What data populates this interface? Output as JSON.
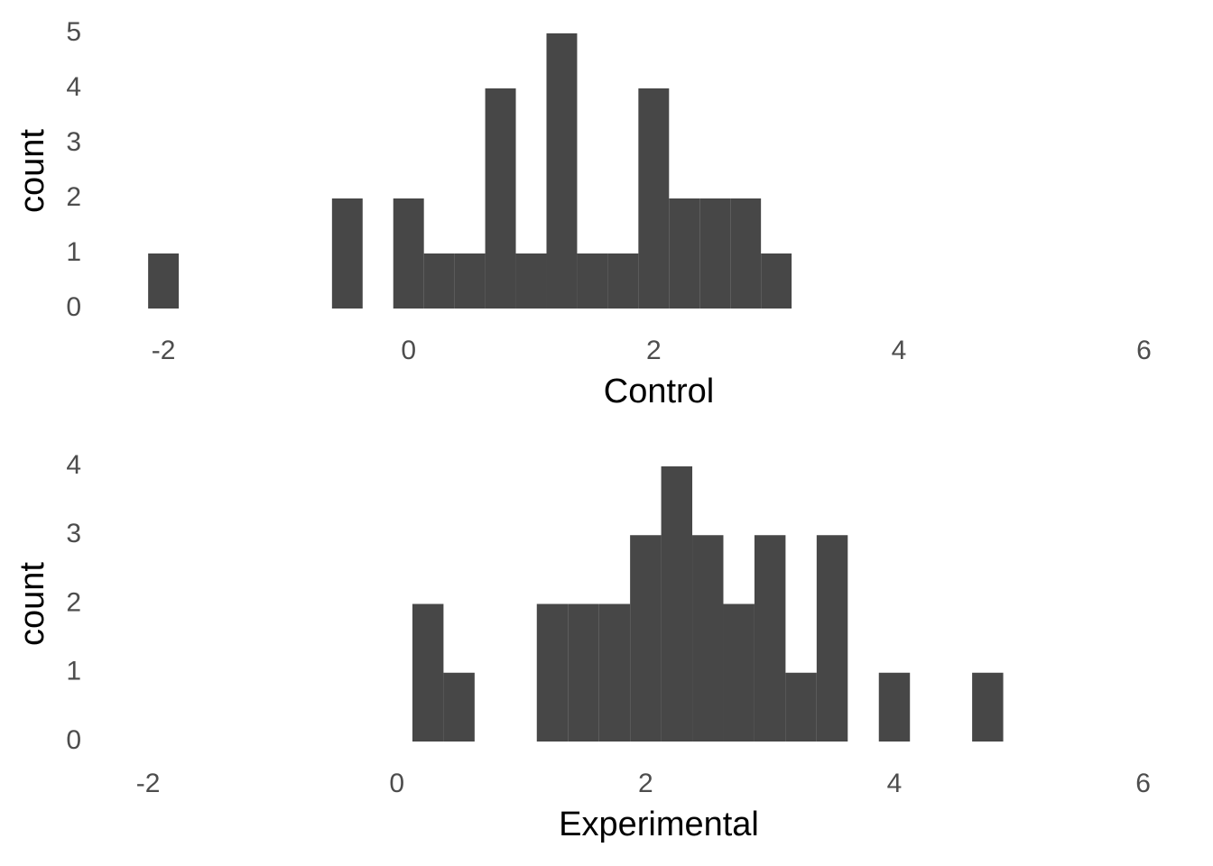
{
  "chart_data": [
    {
      "type": "histogram",
      "xlabel": "Control",
      "ylabel": "count",
      "color": "#474747",
      "grid": false,
      "bins": [
        -2.125,
        -1.875,
        -1.625,
        -1.375,
        -1.125,
        -0.875,
        -0.625,
        -0.375,
        -0.125,
        0.125,
        0.375,
        0.625,
        0.875,
        1.125,
        1.375,
        1.625,
        1.875,
        2.125,
        2.375,
        2.625,
        2.875,
        3.125
      ],
      "values": [
        1,
        0,
        0,
        0,
        0,
        0,
        2,
        0,
        2,
        1,
        1,
        4,
        1,
        5,
        1,
        1,
        4,
        2,
        2,
        2,
        1
      ],
      "xlim": [
        -2.45,
        6.46
      ],
      "xticks": [
        -2,
        0,
        2,
        4,
        6
      ],
      "ylim": [
        0,
        5
      ],
      "yticks": [
        0,
        1,
        2,
        3,
        4,
        5
      ]
    },
    {
      "type": "histogram",
      "xlabel": "Experimental",
      "ylabel": "count",
      "color": "#474747",
      "grid": false,
      "bins": [
        0.125,
        0.375,
        0.625,
        0.875,
        1.125,
        1.375,
        1.625,
        1.875,
        2.125,
        2.375,
        2.625,
        2.875,
        3.125,
        3.375,
        3.625,
        3.875,
        4.125,
        4.375,
        4.625,
        4.875
      ],
      "values": [
        2,
        1,
        0,
        0,
        2,
        2,
        2,
        3,
        4,
        3,
        2,
        3,
        1,
        3,
        0,
        1,
        0,
        0,
        1
      ],
      "xlim": [
        -2.32,
        6.46
      ],
      "xticks": [
        -2,
        0,
        2,
        4,
        6
      ],
      "ylim": [
        0,
        4
      ],
      "yticks": [
        0,
        1,
        2,
        3,
        4
      ]
    }
  ]
}
